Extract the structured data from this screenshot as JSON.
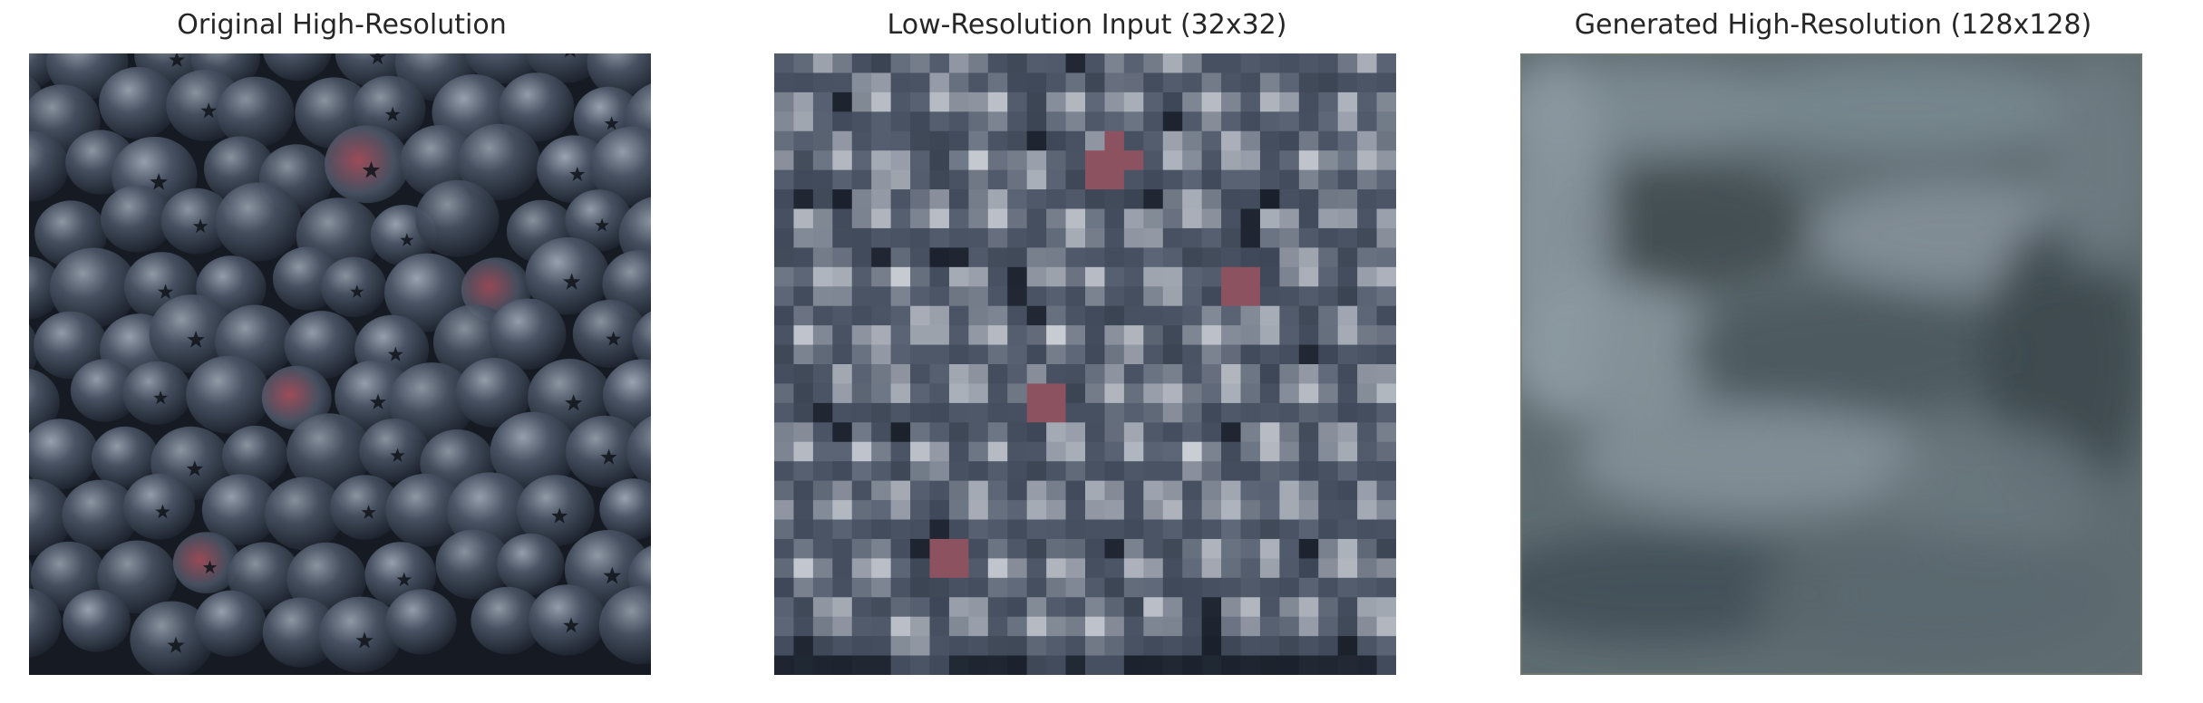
{
  "figure": {
    "panels": [
      {
        "id": "original",
        "title": "Original High-Resolution",
        "image": "blueberries-photo"
      },
      {
        "id": "low_res",
        "title": "Low-Resolution Input (32x32)",
        "image": "blueberries-pixelated"
      },
      {
        "id": "generated",
        "title": "Generated High-Resolution (128x128)",
        "image": "blueberries-blurred"
      }
    ]
  },
  "colors": {
    "background": "#ffffff",
    "title_text": "#262626",
    "berry_dark": "#1e2530",
    "berry_mid": "#4b5566",
    "berry_light": "#9aa3b0",
    "berry_highlight": "#c9cdd4",
    "berry_red": "#a8505e",
    "blur_base": "#5f6d72"
  }
}
